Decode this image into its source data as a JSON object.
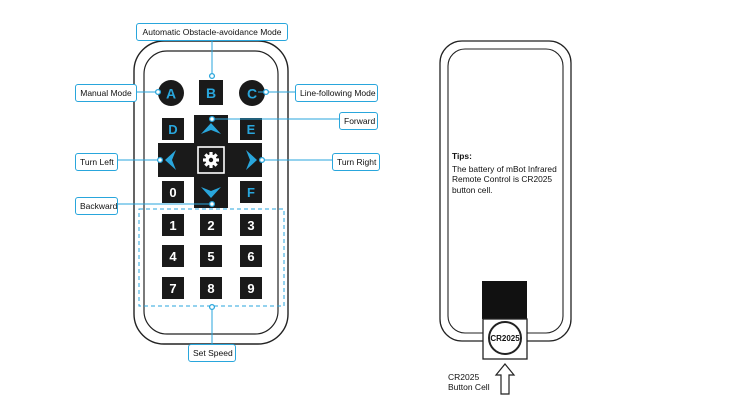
{
  "callouts": {
    "obstacle": "Automatic Obstacle-avoidance Mode",
    "manual": "Manual Mode",
    "line": "Line-following Mode",
    "forward": "Forward",
    "turn_left": "Turn Left",
    "turn_right": "Turn Right",
    "backward": "Backward",
    "set_speed": "Set Speed"
  },
  "remote": {
    "mode_keys": [
      "A",
      "B",
      "C"
    ],
    "side_keys": [
      "D",
      "E",
      "0",
      "F"
    ],
    "number_keys": [
      "1",
      "2",
      "3",
      "4",
      "5",
      "6",
      "7",
      "8",
      "9"
    ],
    "icons": [
      "arrow-up-icon",
      "arrow-down-icon",
      "arrow-left-icon",
      "arrow-right-icon",
      "gear-icon"
    ]
  },
  "back": {
    "tips_title": "Tips:",
    "tips_text": "The battery of mBot Infrared Remote Control is CR2025 button cell.",
    "cell_label": "CR2025",
    "caption_line1": "CR2025",
    "caption_line2": "Button Cell",
    "icons": [
      "arrow-up-outline-icon"
    ]
  },
  "colors": {
    "accent": "#29a6dc",
    "key": "#1a1a1a",
    "outline": "#222222"
  }
}
